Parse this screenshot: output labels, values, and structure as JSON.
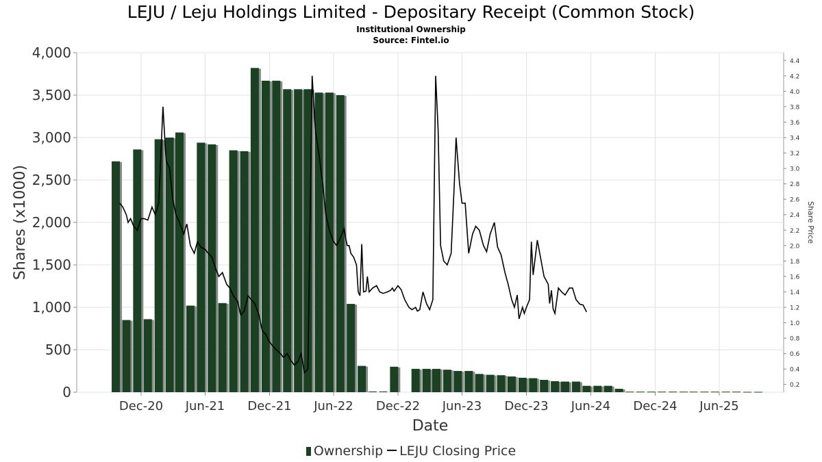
{
  "chart_data": {
    "type": "bar",
    "title": "LEJU / Leju Holdings Limited - Depositary Receipt (Common Stock)",
    "subtitle": "Institutional Ownership",
    "source": "Source: Fintel.io",
    "xlabel": "Date",
    "ylabel": "Shares (x1000)",
    "y2label": "Share Price",
    "ylim": [
      0,
      4000
    ],
    "y2lim": [
      0.1,
      4.5
    ],
    "yticks": [
      "0",
      "500",
      "1,000",
      "1,500",
      "2,000",
      "2,500",
      "3,000",
      "3,500",
      "4,000"
    ],
    "y2ticks": [
      "0.2",
      "0.4",
      "0.6",
      "0.8",
      "1.0",
      "1.2",
      "1.4",
      "1.6",
      "1.8",
      "2.0",
      "2.2",
      "2.4",
      "2.6",
      "2.8",
      "3.0",
      "3.2",
      "3.4",
      "3.6",
      "3.8",
      "4.0",
      "4.2",
      "4.4"
    ],
    "xticks": [
      {
        "label": "Dec-20",
        "date": "2020-12-01"
      },
      {
        "label": "Jun-21",
        "date": "2021-06-01"
      },
      {
        "label": "Dec-21",
        "date": "2021-12-01"
      },
      {
        "label": "Jun-22",
        "date": "2022-06-01"
      },
      {
        "label": "Dec-22",
        "date": "2022-12-01"
      },
      {
        "label": "Jun-23",
        "date": "2023-06-01"
      },
      {
        "label": "Dec-23",
        "date": "2023-12-01"
      },
      {
        "label": "Jun-24",
        "date": "2024-06-01"
      },
      {
        "label": "Dec-24",
        "date": "2024-12-01"
      },
      {
        "label": "Jun-25",
        "date": "2025-06-01"
      }
    ],
    "xlim": [
      "2020-06-01",
      "2025-12-01"
    ],
    "grid": true,
    "legend_position": "bottom",
    "series": [
      {
        "name": "Ownership",
        "type": "bar",
        "color": "#1a4222",
        "points": [
          {
            "date": "2020-09-20",
            "value": 2720
          },
          {
            "date": "2020-10-20",
            "value": 850
          },
          {
            "date": "2020-11-20",
            "value": 2860
          },
          {
            "date": "2020-12-20",
            "value": 860
          },
          {
            "date": "2021-01-20",
            "value": 2980
          },
          {
            "date": "2021-02-20",
            "value": 3000
          },
          {
            "date": "2021-03-20",
            "value": 3060
          },
          {
            "date": "2021-04-20",
            "value": 1020
          },
          {
            "date": "2021-05-20",
            "value": 2940
          },
          {
            "date": "2021-06-20",
            "value": 2920
          },
          {
            "date": "2021-07-20",
            "value": 1050
          },
          {
            "date": "2021-08-20",
            "value": 2850
          },
          {
            "date": "2021-09-20",
            "value": 2840
          },
          {
            "date": "2021-10-20",
            "value": 3820
          },
          {
            "date": "2021-11-20",
            "value": 3670
          },
          {
            "date": "2021-12-20",
            "value": 3670
          },
          {
            "date": "2022-01-20",
            "value": 3570
          },
          {
            "date": "2022-02-20",
            "value": 3570
          },
          {
            "date": "2022-03-20",
            "value": 3570
          },
          {
            "date": "2022-04-20",
            "value": 3530
          },
          {
            "date": "2022-05-20",
            "value": 3530
          },
          {
            "date": "2022-06-20",
            "value": 3500
          },
          {
            "date": "2022-07-20",
            "value": 1040
          },
          {
            "date": "2022-08-20",
            "value": 310
          },
          {
            "date": "2022-09-20",
            "value": 8
          },
          {
            "date": "2022-10-20",
            "value": 8
          },
          {
            "date": "2022-11-20",
            "value": 300
          },
          {
            "date": "2023-01-20",
            "value": 275
          },
          {
            "date": "2023-02-20",
            "value": 275
          },
          {
            "date": "2023-03-20",
            "value": 275
          },
          {
            "date": "2023-04-20",
            "value": 265
          },
          {
            "date": "2023-05-20",
            "value": 250
          },
          {
            "date": "2023-06-20",
            "value": 250
          },
          {
            "date": "2023-07-20",
            "value": 215
          },
          {
            "date": "2023-08-20",
            "value": 205
          },
          {
            "date": "2023-09-20",
            "value": 200
          },
          {
            "date": "2023-10-20",
            "value": 185
          },
          {
            "date": "2023-11-20",
            "value": 170
          },
          {
            "date": "2023-12-20",
            "value": 165
          },
          {
            "date": "2024-01-20",
            "value": 145
          },
          {
            "date": "2024-02-20",
            "value": 130
          },
          {
            "date": "2024-03-20",
            "value": 125
          },
          {
            "date": "2024-04-20",
            "value": 125
          },
          {
            "date": "2024-05-20",
            "value": 75
          },
          {
            "date": "2024-06-20",
            "value": 75
          },
          {
            "date": "2024-07-20",
            "value": 75
          },
          {
            "date": "2024-08-20",
            "value": 40
          },
          {
            "date": "2024-09-20",
            "value": 6
          },
          {
            "date": "2024-10-20",
            "value": 6
          },
          {
            "date": "2024-11-20",
            "value": 6
          },
          {
            "date": "2024-12-20",
            "value": 6
          },
          {
            "date": "2025-01-20",
            "value": 6
          },
          {
            "date": "2025-02-20",
            "value": 6
          },
          {
            "date": "2025-03-20",
            "value": 6
          },
          {
            "date": "2025-04-20",
            "value": 6
          },
          {
            "date": "2025-05-20",
            "value": 6
          },
          {
            "date": "2025-06-20",
            "value": 6
          },
          {
            "date": "2025-07-20",
            "value": 6
          },
          {
            "date": "2025-08-20",
            "value": 4
          },
          {
            "date": "2025-09-20",
            "value": 4
          }
        ]
      },
      {
        "name": "LEJU Closing Price",
        "type": "line",
        "axis": "right",
        "color": "#000000",
        "points": [
          {
            "date": "2020-10-01",
            "value": 2.55
          },
          {
            "date": "2020-10-10",
            "value": 2.5
          },
          {
            "date": "2020-10-20",
            "value": 2.4
          },
          {
            "date": "2020-10-25",
            "value": 2.3
          },
          {
            "date": "2020-11-01",
            "value": 2.35
          },
          {
            "date": "2020-11-10",
            "value": 2.25
          },
          {
            "date": "2020-11-20",
            "value": 2.2
          },
          {
            "date": "2020-12-01",
            "value": 2.35
          },
          {
            "date": "2020-12-10",
            "value": 2.35
          },
          {
            "date": "2020-12-20",
            "value": 2.33
          },
          {
            "date": "2021-01-01",
            "value": 2.5
          },
          {
            "date": "2021-01-10",
            "value": 2.4
          },
          {
            "date": "2021-01-20",
            "value": 2.55
          },
          {
            "date": "2021-02-01",
            "value": 3.8
          },
          {
            "date": "2021-02-10",
            "value": 3.1
          },
          {
            "date": "2021-02-20",
            "value": 3.0
          },
          {
            "date": "2021-03-01",
            "value": 2.6
          },
          {
            "date": "2021-03-10",
            "value": 2.4
          },
          {
            "date": "2021-03-20",
            "value": 2.3
          },
          {
            "date": "2021-04-01",
            "value": 2.15
          },
          {
            "date": "2021-04-10",
            "value": 2.28
          },
          {
            "date": "2021-04-20",
            "value": 2.0
          },
          {
            "date": "2021-05-01",
            "value": 1.9
          },
          {
            "date": "2021-05-10",
            "value": 2.05
          },
          {
            "date": "2021-05-20",
            "value": 1.98
          },
          {
            "date": "2021-06-01",
            "value": 1.95
          },
          {
            "date": "2021-06-10",
            "value": 1.9
          },
          {
            "date": "2021-06-20",
            "value": 1.85
          },
          {
            "date": "2021-07-01",
            "value": 1.7
          },
          {
            "date": "2021-07-10",
            "value": 1.6
          },
          {
            "date": "2021-07-20",
            "value": 1.65
          },
          {
            "date": "2021-08-01",
            "value": 1.5
          },
          {
            "date": "2021-08-10",
            "value": 1.45
          },
          {
            "date": "2021-08-20",
            "value": 1.35
          },
          {
            "date": "2021-09-01",
            "value": 1.28
          },
          {
            "date": "2021-09-10",
            "value": 1.1
          },
          {
            "date": "2021-09-20",
            "value": 1.15
          },
          {
            "date": "2021-10-01",
            "value": 1.35
          },
          {
            "date": "2021-10-10",
            "value": 1.3
          },
          {
            "date": "2021-10-20",
            "value": 1.25
          },
          {
            "date": "2021-11-01",
            "value": 1.1
          },
          {
            "date": "2021-11-10",
            "value": 0.9
          },
          {
            "date": "2021-11-20",
            "value": 0.85
          },
          {
            "date": "2021-12-01",
            "value": 0.75
          },
          {
            "date": "2021-12-10",
            "value": 0.7
          },
          {
            "date": "2021-12-20",
            "value": 0.65
          },
          {
            "date": "2022-01-01",
            "value": 0.6
          },
          {
            "date": "2022-01-10",
            "value": 0.55
          },
          {
            "date": "2022-01-20",
            "value": 0.6
          },
          {
            "date": "2022-02-01",
            "value": 0.5
          },
          {
            "date": "2022-02-10",
            "value": 0.45
          },
          {
            "date": "2022-02-20",
            "value": 0.5
          },
          {
            "date": "2022-03-01",
            "value": 0.6
          },
          {
            "date": "2022-03-10",
            "value": 0.35
          },
          {
            "date": "2022-03-20",
            "value": 0.4
          },
          {
            "date": "2022-04-01",
            "value": 4.2
          },
          {
            "date": "2022-04-10",
            "value": 3.5
          },
          {
            "date": "2022-04-20",
            "value": 3.2
          },
          {
            "date": "2022-05-01",
            "value": 2.8
          },
          {
            "date": "2022-05-10",
            "value": 2.4
          },
          {
            "date": "2022-05-20",
            "value": 2.2
          },
          {
            "date": "2022-06-01",
            "value": 2.05
          },
          {
            "date": "2022-06-10",
            "value": 2.0
          },
          {
            "date": "2022-06-20",
            "value": 2.1
          },
          {
            "date": "2022-07-01",
            "value": 2.22
          },
          {
            "date": "2022-07-05",
            "value": 2.1
          },
          {
            "date": "2022-07-10",
            "value": 2.0
          },
          {
            "date": "2022-07-15",
            "value": 2.0
          },
          {
            "date": "2022-07-20",
            "value": 1.9
          },
          {
            "date": "2022-07-28",
            "value": 1.85
          },
          {
            "date": "2022-08-05",
            "value": 1.75
          },
          {
            "date": "2022-08-10",
            "value": 1.4
          },
          {
            "date": "2022-08-15",
            "value": 1.35
          },
          {
            "date": "2022-08-20",
            "value": 2.02
          },
          {
            "date": "2022-08-25",
            "value": 1.4
          },
          {
            "date": "2022-09-01",
            "value": 1.41
          },
          {
            "date": "2022-09-05",
            "value": 1.6
          },
          {
            "date": "2022-09-10",
            "value": 1.4
          },
          {
            "date": "2022-09-20",
            "value": 1.45
          },
          {
            "date": "2022-10-01",
            "value": 1.48
          },
          {
            "date": "2022-10-10",
            "value": 1.4
          },
          {
            "date": "2022-10-20",
            "value": 1.38
          },
          {
            "date": "2022-11-01",
            "value": 1.4
          },
          {
            "date": "2022-11-10",
            "value": 1.42
          },
          {
            "date": "2022-11-15",
            "value": 1.45
          },
          {
            "date": "2022-11-20",
            "value": 1.41
          },
          {
            "date": "2022-12-01",
            "value": 1.48
          },
          {
            "date": "2022-12-10",
            "value": 1.43
          },
          {
            "date": "2022-12-20",
            "value": 1.3
          },
          {
            "date": "2023-01-01",
            "value": 1.2
          },
          {
            "date": "2023-01-10",
            "value": 1.17
          },
          {
            "date": "2023-01-20",
            "value": 1.2
          },
          {
            "date": "2023-01-25",
            "value": 1.15
          },
          {
            "date": "2023-02-01",
            "value": 1.17
          },
          {
            "date": "2023-02-10",
            "value": 1.4
          },
          {
            "date": "2023-02-20",
            "value": 1.25
          },
          {
            "date": "2023-03-01",
            "value": 1.17
          },
          {
            "date": "2023-03-10",
            "value": 1.3
          },
          {
            "date": "2023-03-18",
            "value": 4.2
          },
          {
            "date": "2023-03-25",
            "value": 3.5
          },
          {
            "date": "2023-04-01",
            "value": 2.0
          },
          {
            "date": "2023-04-10",
            "value": 1.8
          },
          {
            "date": "2023-04-20",
            "value": 1.75
          },
          {
            "date": "2023-05-01",
            "value": 1.9
          },
          {
            "date": "2023-05-10",
            "value": 2.8
          },
          {
            "date": "2023-05-15",
            "value": 3.4
          },
          {
            "date": "2023-05-25",
            "value": 2.8
          },
          {
            "date": "2023-06-01",
            "value": 2.55
          },
          {
            "date": "2023-06-10",
            "value": 2.55
          },
          {
            "date": "2023-06-20",
            "value": 1.9
          },
          {
            "date": "2023-07-01",
            "value": 2.15
          },
          {
            "date": "2023-07-10",
            "value": 2.25
          },
          {
            "date": "2023-07-20",
            "value": 2.2
          },
          {
            "date": "2023-08-01",
            "value": 2.0
          },
          {
            "date": "2023-08-10",
            "value": 1.92
          },
          {
            "date": "2023-08-20",
            "value": 2.15
          },
          {
            "date": "2023-09-01",
            "value": 2.3
          },
          {
            "date": "2023-09-10",
            "value": 1.98
          },
          {
            "date": "2023-09-20",
            "value": 1.88
          },
          {
            "date": "2023-10-01",
            "value": 1.65
          },
          {
            "date": "2023-10-10",
            "value": 1.5
          },
          {
            "date": "2023-10-20",
            "value": 1.3
          },
          {
            "date": "2023-10-28",
            "value": 1.2
          },
          {
            "date": "2023-11-05",
            "value": 1.36
          },
          {
            "date": "2023-11-10",
            "value": 1.05
          },
          {
            "date": "2023-11-20",
            "value": 1.2
          },
          {
            "date": "2023-11-25",
            "value": 1.12
          },
          {
            "date": "2023-12-01",
            "value": 1.2
          },
          {
            "date": "2023-12-10",
            "value": 1.3
          },
          {
            "date": "2023-12-15",
            "value": 2.05
          },
          {
            "date": "2023-12-20",
            "value": 1.62
          },
          {
            "date": "2024-01-01",
            "value": 2.07
          },
          {
            "date": "2024-01-10",
            "value": 1.85
          },
          {
            "date": "2024-01-20",
            "value": 1.6
          },
          {
            "date": "2024-02-01",
            "value": 1.5
          },
          {
            "date": "2024-02-05",
            "value": 1.25
          },
          {
            "date": "2024-02-10",
            "value": 1.42
          },
          {
            "date": "2024-02-15",
            "value": 1.18
          },
          {
            "date": "2024-02-20",
            "value": 1.12
          },
          {
            "date": "2024-03-01",
            "value": 1.45
          },
          {
            "date": "2024-03-10",
            "value": 1.4
          },
          {
            "date": "2024-03-20",
            "value": 1.36
          },
          {
            "date": "2024-04-01",
            "value": 1.45
          },
          {
            "date": "2024-04-10",
            "value": 1.45
          },
          {
            "date": "2024-04-20",
            "value": 1.3
          },
          {
            "date": "2024-05-01",
            "value": 1.24
          },
          {
            "date": "2024-05-10",
            "value": 1.23
          },
          {
            "date": "2024-05-20",
            "value": 1.14
          }
        ]
      }
    ]
  }
}
